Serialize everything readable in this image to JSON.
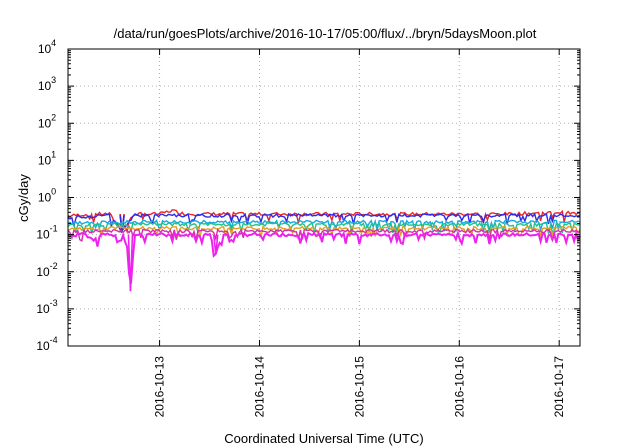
{
  "chart_data": {
    "type": "line",
    "title": "/data/run/goesPlots/archive/2016-10-17/05:00/flux/../bryn/5daysMoon.plot",
    "xlabel": "Coordinated Universal Time (UTC)",
    "ylabel": "cGy/day",
    "yscale": "log",
    "ylim": [
      0.0001,
      10000
    ],
    "xlim": [
      "2016-10-12T02:00",
      "2016-10-17T05:00"
    ],
    "grid": true,
    "x_ticks": [
      "2016-10-13",
      "2016-10-14",
      "2016-10-15",
      "2016-10-16",
      "2016-10-17"
    ],
    "y_ticks": [
      {
        "base": "10",
        "exp": "-4"
      },
      {
        "base": "10",
        "exp": "-3"
      },
      {
        "base": "10",
        "exp": "-2"
      },
      {
        "base": "10",
        "exp": "-1"
      },
      {
        "base": "10",
        "exp": "0"
      },
      {
        "base": "10",
        "exp": "1"
      },
      {
        "base": "10",
        "exp": "2"
      },
      {
        "base": "10",
        "exp": "3"
      },
      {
        "base": "10",
        "exp": "4"
      }
    ],
    "y_tick_values": [
      0.0001,
      0.001,
      0.01,
      0.1,
      1,
      10,
      100,
      1000,
      10000
    ],
    "series": [
      {
        "color": "#e8262b",
        "baseline": 0.36,
        "points": [
          [
            "2016-10-12T02:00",
            0.32
          ],
          [
            "2016-10-12T08:00",
            0.36
          ],
          [
            "2016-10-12T12:00",
            0.36
          ],
          [
            "2016-10-12T15:00",
            0.13
          ],
          [
            "2016-10-12T18:00",
            0.36
          ],
          [
            "2016-10-13T00:00",
            0.36
          ],
          [
            "2016-10-13T03:00",
            0.45
          ],
          [
            "2016-10-13T06:00",
            0.36
          ],
          [
            "2016-10-13T12:00",
            0.36
          ],
          [
            "2016-10-14T00:00",
            0.36
          ],
          [
            "2016-10-14T12:00",
            0.36
          ],
          [
            "2016-10-15T00:00",
            0.36
          ],
          [
            "2016-10-15T12:00",
            0.36
          ],
          [
            "2016-10-16T00:00",
            0.36
          ],
          [
            "2016-10-16T12:00",
            0.36
          ],
          [
            "2016-10-17T00:00",
            0.4
          ],
          [
            "2016-10-17T05:00",
            0.36
          ]
        ]
      },
      {
        "color": "#2b2be8",
        "baseline": 0.33,
        "points": [
          [
            "2016-10-12T02:00",
            0.29
          ],
          [
            "2016-10-12T12:00",
            0.33
          ],
          [
            "2016-10-12T15:00",
            0.12
          ],
          [
            "2016-10-12T18:00",
            0.33
          ],
          [
            "2016-10-13T12:00",
            0.33
          ],
          [
            "2016-10-14T12:00",
            0.33
          ],
          [
            "2016-10-15T12:00",
            0.33
          ],
          [
            "2016-10-16T12:00",
            0.33
          ],
          [
            "2016-10-17T05:00",
            0.33
          ]
        ]
      },
      {
        "color": "#18a8e0",
        "baseline": 0.22,
        "points": [
          [
            "2016-10-12T02:00",
            0.2
          ],
          [
            "2016-10-12T12:00",
            0.22
          ],
          [
            "2016-10-14T00:00",
            0.22
          ],
          [
            "2016-10-16T00:00",
            0.22
          ],
          [
            "2016-10-17T05:00",
            0.22
          ]
        ]
      },
      {
        "color": "#22c08a",
        "baseline": 0.19,
        "points": [
          [
            "2016-10-12T02:00",
            0.18
          ],
          [
            "2016-10-12T12:00",
            0.19
          ],
          [
            "2016-10-14T00:00",
            0.19
          ],
          [
            "2016-10-16T00:00",
            0.19
          ],
          [
            "2016-10-17T05:00",
            0.19
          ]
        ]
      },
      {
        "color": "#e0a020",
        "baseline": 0.15,
        "points": [
          [
            "2016-10-12T02:00",
            0.14
          ],
          [
            "2016-10-12T12:00",
            0.15
          ],
          [
            "2016-10-14T00:00",
            0.15
          ],
          [
            "2016-10-16T00:00",
            0.15
          ],
          [
            "2016-10-17T05:00",
            0.15
          ]
        ]
      },
      {
        "color": "#d32ea8",
        "baseline": 0.125,
        "points": [
          [
            "2016-10-12T02:00",
            0.12
          ],
          [
            "2016-10-12T12:00",
            0.125
          ],
          [
            "2016-10-14T00:00",
            0.125
          ],
          [
            "2016-10-16T00:00",
            0.125
          ],
          [
            "2016-10-17T05:00",
            0.125
          ]
        ]
      },
      {
        "color": "#ee22ee",
        "baseline": 0.1,
        "points": [
          [
            "2016-10-12T02:00",
            0.1
          ],
          [
            "2016-10-12T06:00",
            0.1
          ],
          [
            "2016-10-12T08:00",
            0.07
          ],
          [
            "2016-10-12T10:00",
            0.1
          ],
          [
            "2016-10-12T15:00",
            0.1
          ],
          [
            "2016-10-12T16:00",
            0.08
          ],
          [
            "2016-10-12T17:00",
            0.003
          ],
          [
            "2016-10-12T18:00",
            0.1
          ],
          [
            "2016-10-13T12:00",
            0.1
          ],
          [
            "2016-10-13T13:30",
            0.03
          ],
          [
            "2016-10-13T15:00",
            0.1
          ],
          [
            "2016-10-14T12:00",
            0.1
          ],
          [
            "2016-10-15T12:00",
            0.1
          ],
          [
            "2016-10-16T12:00",
            0.1
          ],
          [
            "2016-10-17T05:00",
            0.1
          ]
        ]
      }
    ]
  }
}
